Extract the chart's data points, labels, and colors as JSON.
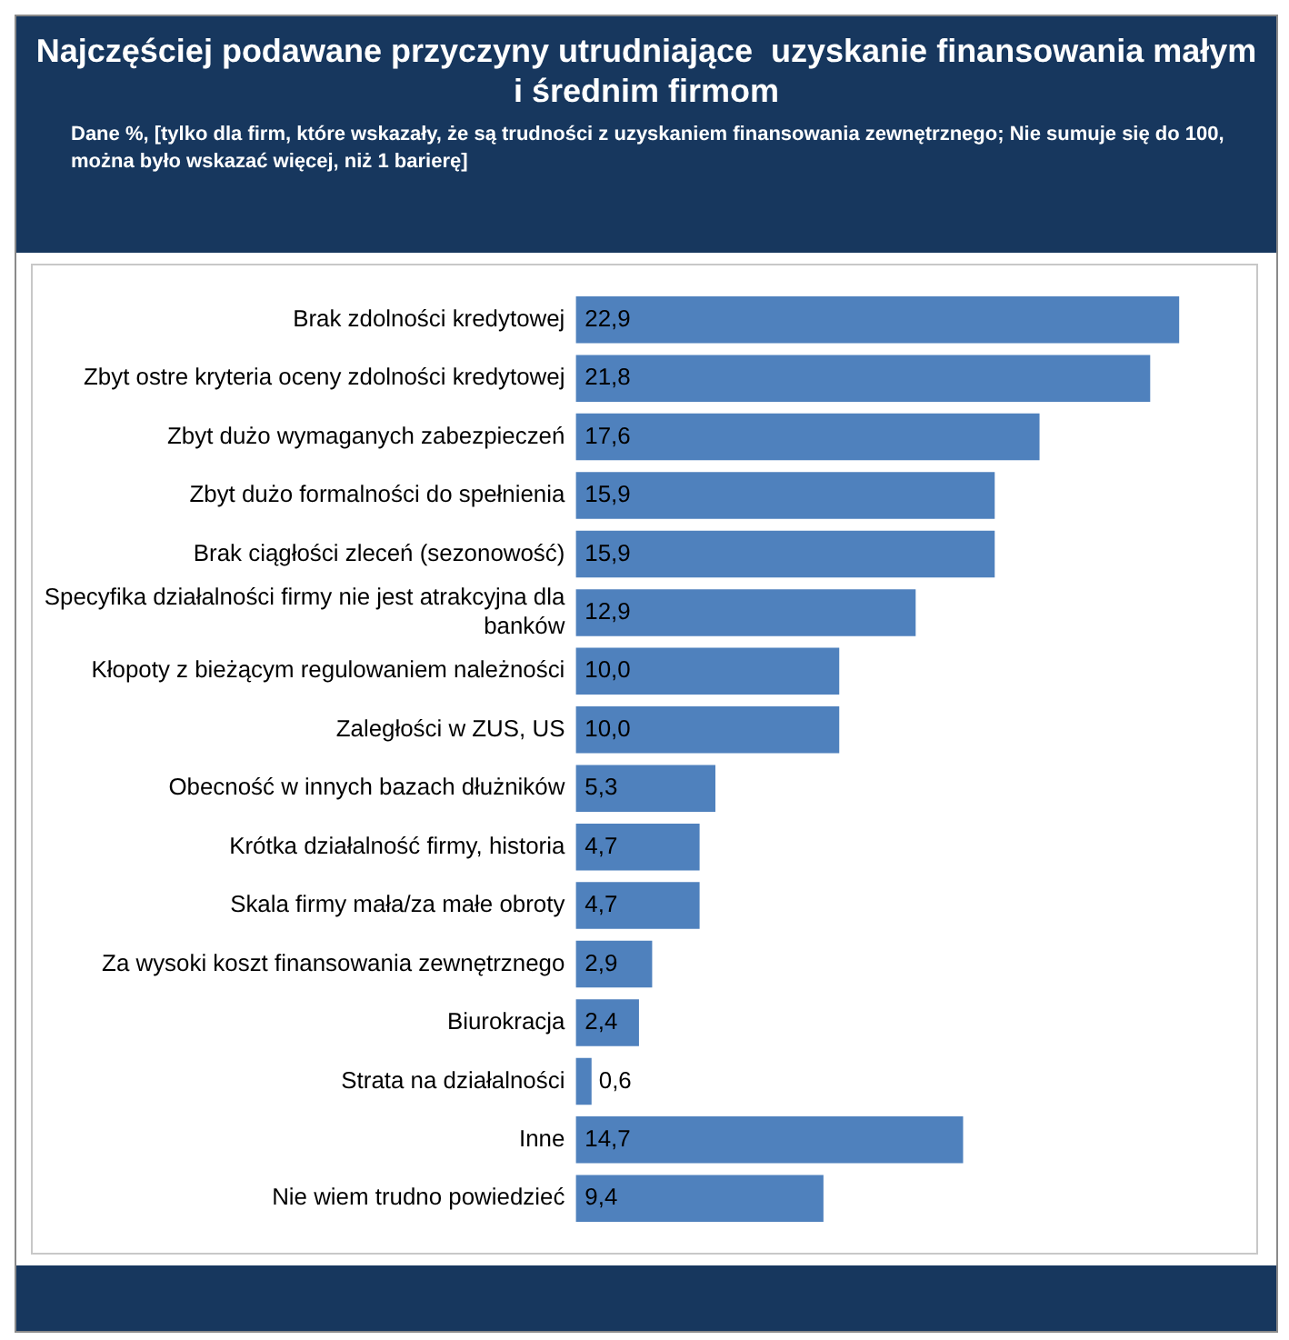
{
  "chart_data": {
    "type": "bar",
    "orientation": "horizontal",
    "title": "Najczęściej podawane przyczyny utrudniające  uzyskanie finansowania małym i średnim firmom",
    "subtitle": "Dane %, [tylko dla firm, które wskazały, że są trudności z uzyskaniem finansowania zewnętrznego; Nie sumuje się do 100, można było wskazać więcej, niż 1 barierę]",
    "categories": [
      "Brak zdolności kredytowej",
      "Zbyt ostre kryteria oceny zdolności kredytowej",
      "Zbyt dużo wymaganych zabezpieczeń",
      "Zbyt dużo formalności do spełnienia",
      "Brak ciągłości zleceń (sezonowość)",
      "Specyfika działalności firmy nie jest atrakcyjna dla banków",
      "Kłopoty z bieżącym regulowaniem należności",
      "Zaległości w ZUS, US",
      "Obecność w innych bazach dłużników",
      "Krótka działalność firmy, historia",
      "Skala firmy mała/za małe obroty",
      "Za wysoki koszt finansowania zewnętrznego",
      "Biurokracja",
      "Strata na działalności",
      "Inne",
      "Nie wiem trudno powiedzieć"
    ],
    "values": [
      22.9,
      21.8,
      17.6,
      15.9,
      15.9,
      12.9,
      10.0,
      10.0,
      5.3,
      4.7,
      4.7,
      2.9,
      2.4,
      0.6,
      14.7,
      9.4
    ],
    "value_labels": [
      "22,9",
      "21,8",
      "17,6",
      "15,9",
      "15,9",
      "12,9",
      "10,0",
      "10,0",
      "5,3",
      "4,7",
      "4,7",
      "2,9",
      "2,4",
      "0,6",
      "14,7",
      "9,4"
    ],
    "color": "#4f81bd",
    "grid": false,
    "legend": false,
    "tick_labels": "y"
  }
}
